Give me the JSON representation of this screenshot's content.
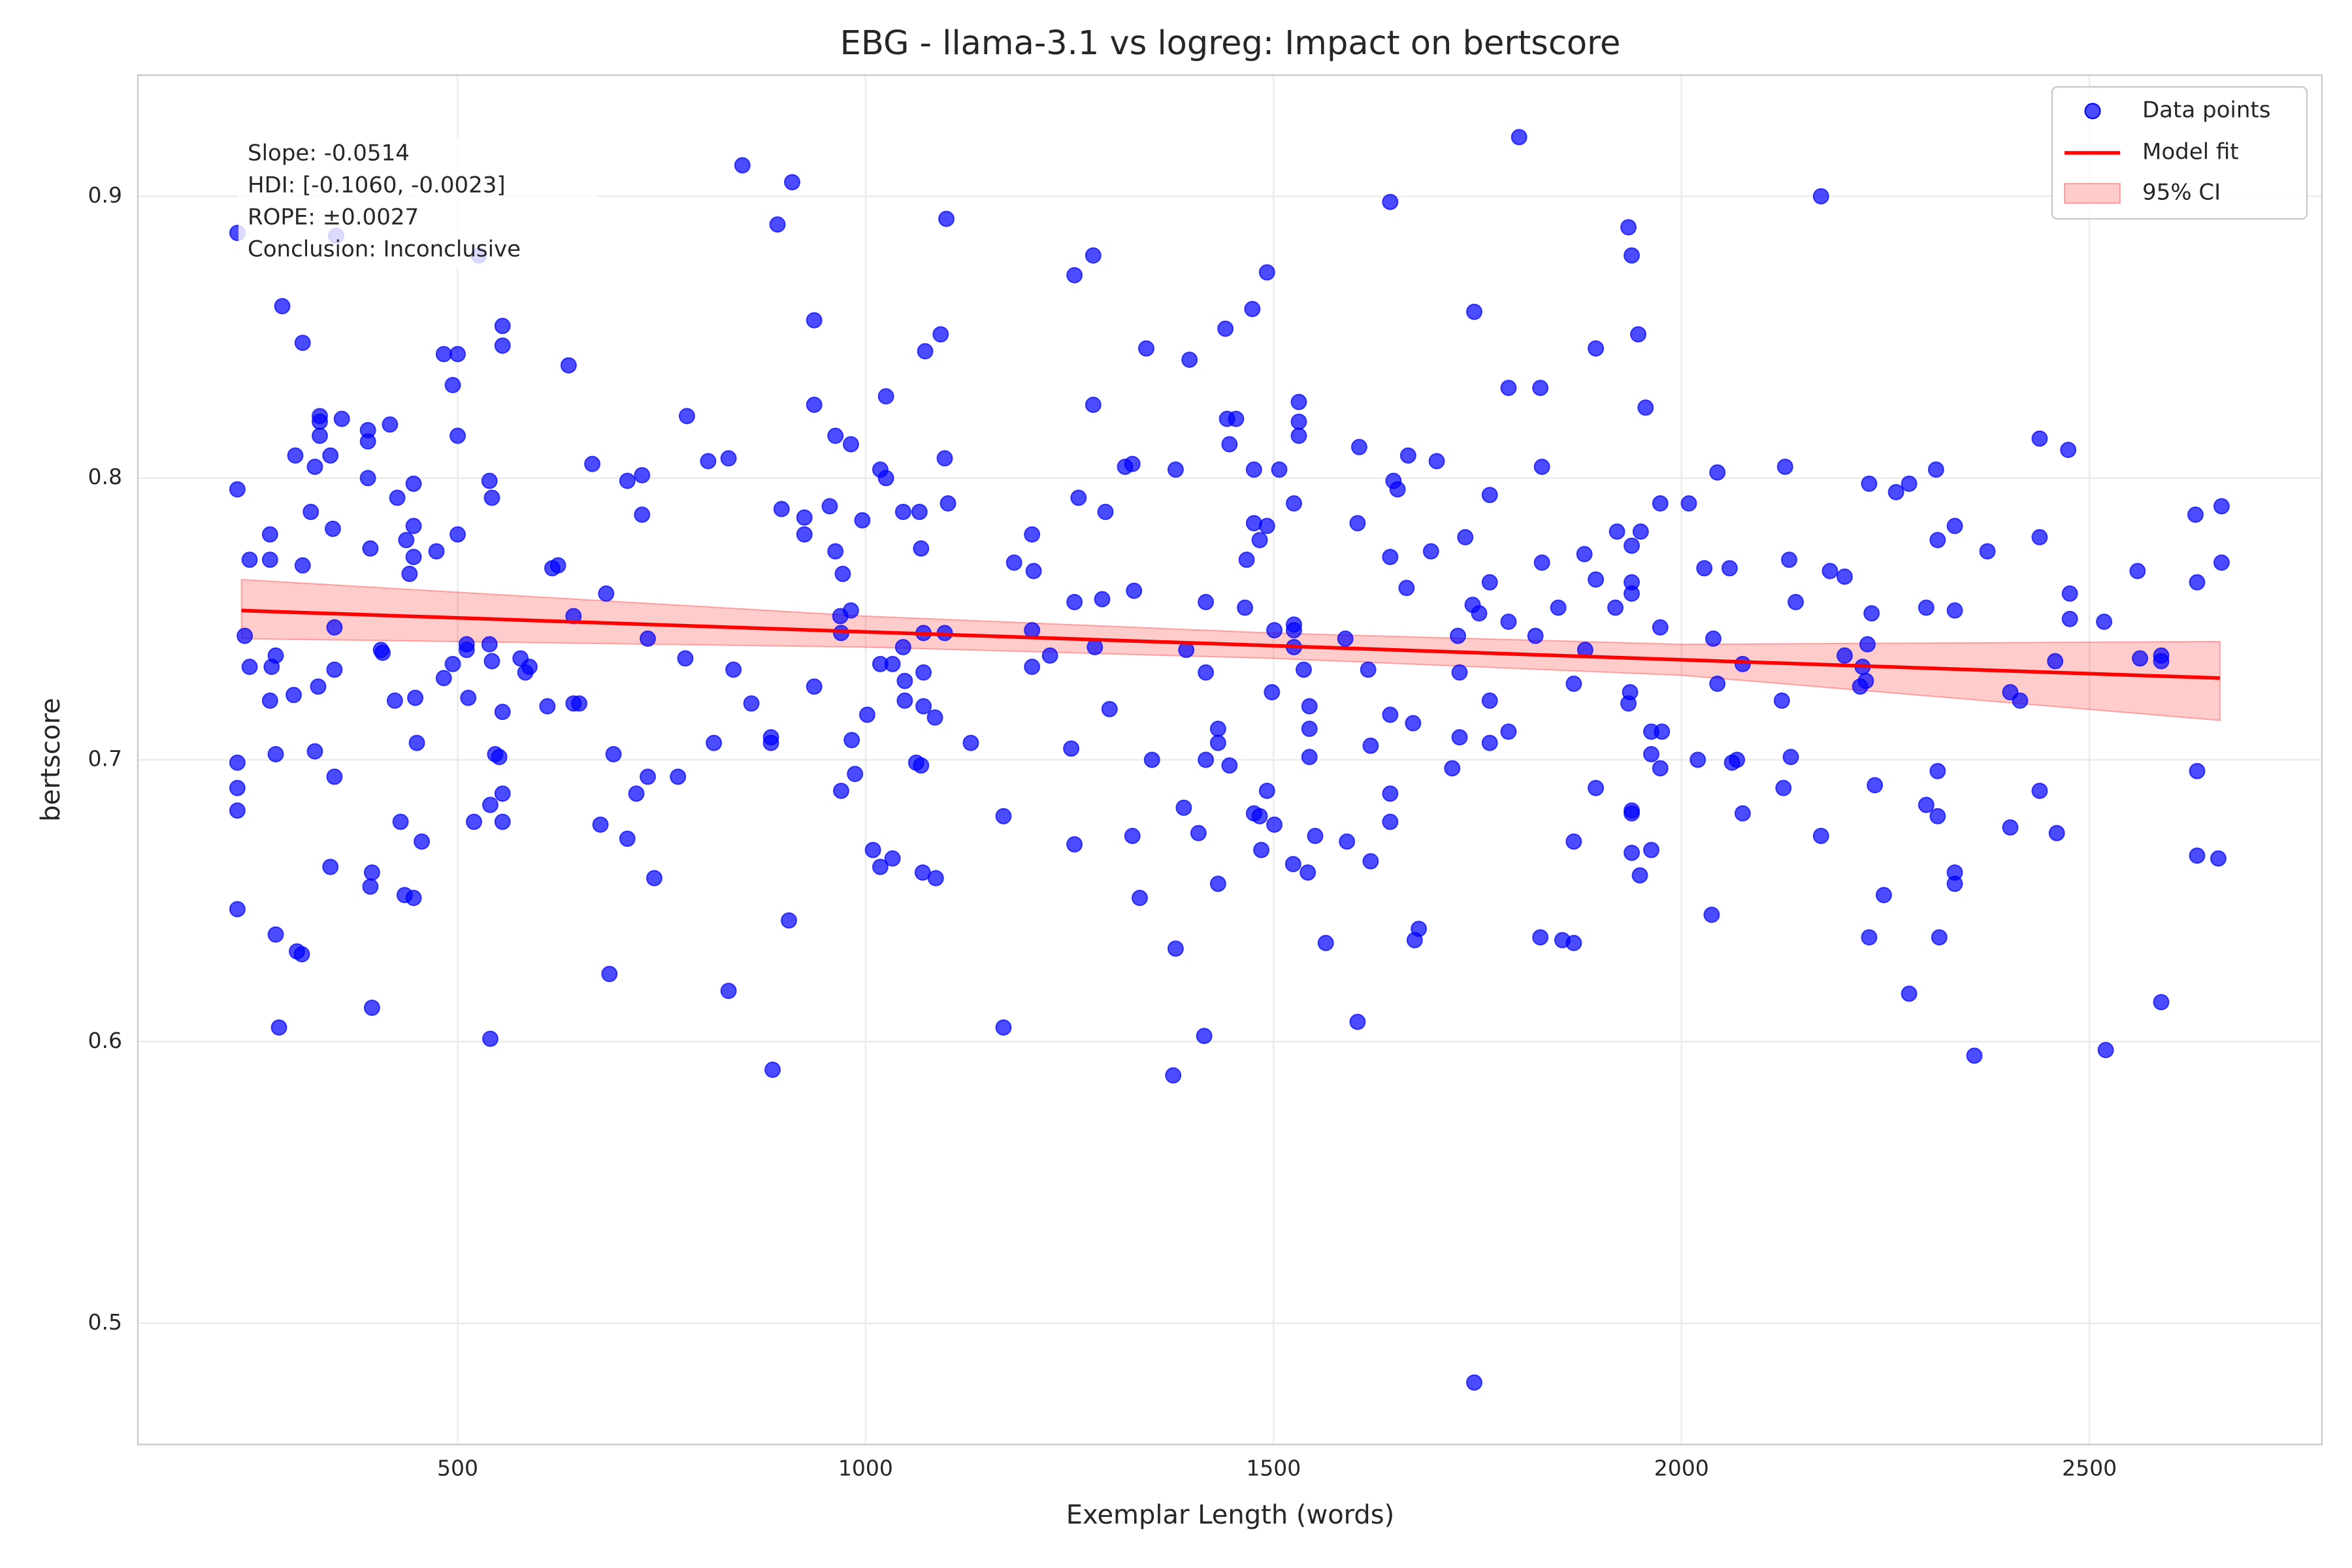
{
  "chart_data": {
    "type": "scatter",
    "title": "EBG - llama-3.1 vs logreg: Impact on bertscore",
    "x_label": "Exemplar Length (words)",
    "y_label": "bertscore",
    "xlim": [
      108,
      2785
    ],
    "ylim": [
      0.457,
      0.943
    ],
    "xticks": [
      500,
      1000,
      1500,
      2000,
      2500
    ],
    "yticks": [
      0.5,
      0.6,
      0.7,
      0.8,
      0.9
    ],
    "grid": true,
    "legend": "upper right",
    "annotation": [
      "Slope: -0.0514",
      "HDI: [-0.1060, -0.0023]",
      "ROPE: ±0.0027",
      "Conclusion: Inconclusive"
    ],
    "series": [
      {
        "name": "Data points",
        "color": "#0000ff",
        "x": [
          230,
          230,
          230,
          230,
          230,
          230,
          239,
          245,
          245,
          270,
          270,
          270,
          272,
          277,
          277,
          277,
          281,
          285,
          299,
          301,
          303,
          309,
          310,
          310,
          320,
          325,
          325,
          329,
          331,
          331,
          331,
          344,
          344,
          347,
          349,
          349,
          349,
          358,
          390,
          390,
          390,
          393,
          393,
          395,
          395,
          406,
          408,
          417,
          423,
          426,
          430,
          435,
          437,
          441,
          446,
          446,
          446,
          446,
          448,
          450,
          456,
          474,
          483,
          483,
          494,
          494,
          500,
          500,
          500,
          511,
          511,
          513,
          520,
          539,
          539,
          540,
          542,
          542,
          546,
          551,
          555,
          555,
          555,
          555,
          555,
          540,
          577,
          583,
          588,
          610,
          616,
          623,
          636,
          642,
          642,
          649,
          665,
          675,
          682,
          686,
          691,
          708,
          708,
          719,
          726,
          726,
          733,
          733,
          741,
          770,
          779,
          781,
          807,
          814,
          832,
          832,
          838,
          860,
          884,
          884,
          886,
          897,
          906,
          910,
          925,
          925,
          937,
          937,
          937,
          956,
          963,
          963,
          969,
          970,
          970,
          972,
          982,
          982,
          983,
          987,
          996,
          1002,
          1009,
          1018,
          1018,
          1018,
          1025,
          1025,
          1033,
          1033,
          1046,
          1046,
          1048,
          1048,
          1062,
          1066,
          1068,
          1068,
          1071,
          1071,
          1071,
          1070,
          1073,
          1085,
          1086,
          1092,
          1097,
          1097,
          1099,
          1101,
          1129,
          1169,
          1169,
          1182,
          1204,
          1204,
          1204,
          1206,
          1226,
          1252,
          1256,
          1256,
          1256,
          1261,
          1279,
          1279,
          1281,
          1290,
          1294,
          1299,
          1318,
          1327,
          1327,
          1329,
          1336,
          1344,
          1351,
          1380,
          1380,
          1377,
          1390,
          1393,
          1397,
          1408,
          1415,
          1417,
          1417,
          1417,
          1432,
          1432,
          1432,
          1441,
          1443,
          1446,
          1446,
          1454,
          1465,
          1467,
          1474,
          1476,
          1476,
          1476,
          1483,
          1483,
          1485,
          1492,
          1492,
          1492,
          1498,
          1501,
          1501,
          1507,
          1524,
          1525,
          1525,
          1525,
          1525,
          1531,
          1531,
          1531,
          1537,
          1542,
          1544,
          1544,
          1544,
          1551,
          1564,
          1588,
          1590,
          1603,
          1603,
          1605,
          1616,
          1619,
          1619,
          1643,
          1643,
          1643,
          1643,
          1643,
          1647,
          1652,
          1663,
          1665,
          1671,
          1673,
          1678,
          1693,
          1700,
          1719,
          1726,
          1728,
          1728,
          1735,
          1744,
          1746,
          1746,
          1752,
          1765,
          1765,
          1765,
          1765,
          1788,
          1788,
          1788,
          1801,
          1821,
          1827,
          1829,
          1829,
          1827,
          1849,
          1854,
          1868,
          1868,
          1868,
          1881,
          1882,
          1895,
          1895,
          1895,
          1919,
          1921,
          1935,
          1939,
          1939,
          1939,
          1939,
          1937,
          1935,
          1939,
          1939,
          1939,
          1947,
          1950,
          1949,
          1956,
          1963,
          1963,
          1963,
          1974,
          1974,
          1974,
          1976,
          2009,
          2020,
          2028,
          2037,
          2039,
          2044,
          2044,
          2059,
          2062,
          2068,
          2075,
          2075,
          2123,
          2125,
          2127,
          2132,
          2134,
          2140,
          2171,
          2171,
          2182,
          2200,
          2200,
          2219,
          2222,
          2226,
          2228,
          2230,
          2230,
          2233,
          2237,
          2248,
          2263,
          2279,
          2279,
          2300,
          2300,
          2312,
          2314,
          2314,
          2314,
          2316,
          2335,
          2335,
          2335,
          2335,
          2359,
          2375,
          2403,
          2403,
          2415,
          2439,
          2439,
          2439,
          2458,
          2460,
          2474,
          2476,
          2476,
          2518,
          2520,
          2559,
          2562,
          2588,
          2588,
          2588,
          2630,
          2632,
          2632,
          2632,
          2662,
          2662,
          2658,
          849,
          892,
          351,
          526
        ],
        "values": [
          0.887,
          0.796,
          0.699,
          0.69,
          0.682,
          0.647,
          0.744,
          0.771,
          0.733,
          0.78,
          0.771,
          0.721,
          0.733,
          0.737,
          0.702,
          0.638,
          0.605,
          0.861,
          0.723,
          0.808,
          0.632,
          0.631,
          0.848,
          0.769,
          0.788,
          0.804,
          0.703,
          0.726,
          0.822,
          0.82,
          0.815,
          0.808,
          0.662,
          0.782,
          0.747,
          0.732,
          0.694,
          0.821,
          0.817,
          0.813,
          0.8,
          0.775,
          0.655,
          0.66,
          0.612,
          0.739,
          0.738,
          0.819,
          0.721,
          0.793,
          0.678,
          0.652,
          0.778,
          0.766,
          0.783,
          0.798,
          0.772,
          0.651,
          0.722,
          0.706,
          0.671,
          0.774,
          0.729,
          0.844,
          0.833,
          0.734,
          0.844,
          0.815,
          0.78,
          0.741,
          0.739,
          0.722,
          0.678,
          0.741,
          0.799,
          0.684,
          0.793,
          0.735,
          0.702,
          0.701,
          0.854,
          0.847,
          0.717,
          0.688,
          0.678,
          0.601,
          0.736,
          0.731,
          0.733,
          0.719,
          0.768,
          0.769,
          0.84,
          0.751,
          0.72,
          0.72,
          0.805,
          0.677,
          0.759,
          0.624,
          0.702,
          0.799,
          0.672,
          0.688,
          0.801,
          0.787,
          0.743,
          0.694,
          0.658,
          0.694,
          0.736,
          0.822,
          0.806,
          0.706,
          0.807,
          0.618,
          0.732,
          0.72,
          0.708,
          0.706,
          0.59,
          0.789,
          0.643,
          0.905,
          0.786,
          0.78,
          0.856,
          0.826,
          0.726,
          0.79,
          0.815,
          0.774,
          0.751,
          0.689,
          0.745,
          0.766,
          0.812,
          0.753,
          0.707,
          0.695,
          0.785,
          0.716,
          0.668,
          0.803,
          0.734,
          0.662,
          0.8,
          0.829,
          0.665,
          0.734,
          0.788,
          0.74,
          0.728,
          0.721,
          0.699,
          0.788,
          0.698,
          0.775,
          0.745,
          0.731,
          0.719,
          0.66,
          0.845,
          0.715,
          0.658,
          0.851,
          0.807,
          0.745,
          0.892,
          0.791,
          0.706,
          0.68,
          0.605,
          0.77,
          0.78,
          0.746,
          0.733,
          0.767,
          0.737,
          0.704,
          0.872,
          0.67,
          0.756,
          0.793,
          0.879,
          0.826,
          0.74,
          0.757,
          0.788,
          0.718,
          0.804,
          0.805,
          0.673,
          0.76,
          0.651,
          0.846,
          0.7,
          0.803,
          0.633,
          0.588,
          0.683,
          0.739,
          0.842,
          0.674,
          0.602,
          0.756,
          0.7,
          0.731,
          0.711,
          0.706,
          0.656,
          0.853,
          0.821,
          0.698,
          0.812,
          0.821,
          0.754,
          0.771,
          0.86,
          0.803,
          0.784,
          0.681,
          0.778,
          0.68,
          0.668,
          0.873,
          0.783,
          0.689,
          0.724,
          0.746,
          0.677,
          0.803,
          0.663,
          0.791,
          0.748,
          0.746,
          0.74,
          0.827,
          0.82,
          0.815,
          0.732,
          0.66,
          0.719,
          0.711,
          0.701,
          0.673,
          0.635,
          0.743,
          0.671,
          0.784,
          0.607,
          0.811,
          0.732,
          0.705,
          0.664,
          0.898,
          0.772,
          0.716,
          0.688,
          0.678,
          0.799,
          0.796,
          0.761,
          0.808,
          0.713,
          0.636,
          0.64,
          0.774,
          0.806,
          0.697,
          0.744,
          0.731,
          0.708,
          0.779,
          0.755,
          0.859,
          0.479,
          0.752,
          0.721,
          0.706,
          0.794,
          0.763,
          0.832,
          0.749,
          0.71,
          0.921,
          0.744,
          0.832,
          0.804,
          0.77,
          0.637,
          0.754,
          0.636,
          0.635,
          0.727,
          0.671,
          0.773,
          0.739,
          0.846,
          0.764,
          0.69,
          0.754,
          0.781,
          0.889,
          0.879,
          0.776,
          0.763,
          0.759,
          0.724,
          0.72,
          0.682,
          0.681,
          0.667,
          0.851,
          0.781,
          0.659,
          0.825,
          0.71,
          0.702,
          0.668,
          0.791,
          0.747,
          0.697,
          0.71,
          0.791,
          0.7,
          0.768,
          0.645,
          0.743,
          0.802,
          0.727,
          0.768,
          0.699,
          0.7,
          0.734,
          0.681,
          0.721,
          0.69,
          0.804,
          0.771,
          0.701,
          0.756,
          0.9,
          0.673,
          0.767,
          0.765,
          0.737,
          0.726,
          0.733,
          0.728,
          0.741,
          0.798,
          0.637,
          0.752,
          0.691,
          0.652,
          0.795,
          0.798,
          0.617,
          0.754,
          0.684,
          0.803,
          0.778,
          0.696,
          0.68,
          0.637,
          0.783,
          0.753,
          0.66,
          0.656,
          0.595,
          0.774,
          0.724,
          0.676,
          0.721,
          0.814,
          0.779,
          0.689,
          0.735,
          0.674,
          0.81,
          0.759,
          0.75,
          0.749,
          0.597,
          0.767,
          0.736,
          0.737,
          0.735,
          0.614,
          0.787,
          0.763,
          0.696,
          0.666,
          0.79,
          0.77,
          0.665,
          0.911,
          0.89,
          0.886,
          0.879
        ]
      }
    ],
    "fit": {
      "name": "Model fit",
      "color": "#ff0000",
      "x": [
        235,
        1000,
        1500,
        2000,
        2660
      ],
      "values": [
        0.753,
        0.7454,
        0.7405,
        0.7355,
        0.729
      ]
    },
    "ci": {
      "name": "95% CI",
      "color": "#ff0000",
      "x": [
        235,
        1000,
        1500,
        2000,
        2660
      ],
      "lower": [
        0.743,
        0.74,
        0.736,
        0.73,
        0.714
      ],
      "upper": [
        0.764,
        0.751,
        0.745,
        0.741,
        0.742
      ]
    }
  }
}
